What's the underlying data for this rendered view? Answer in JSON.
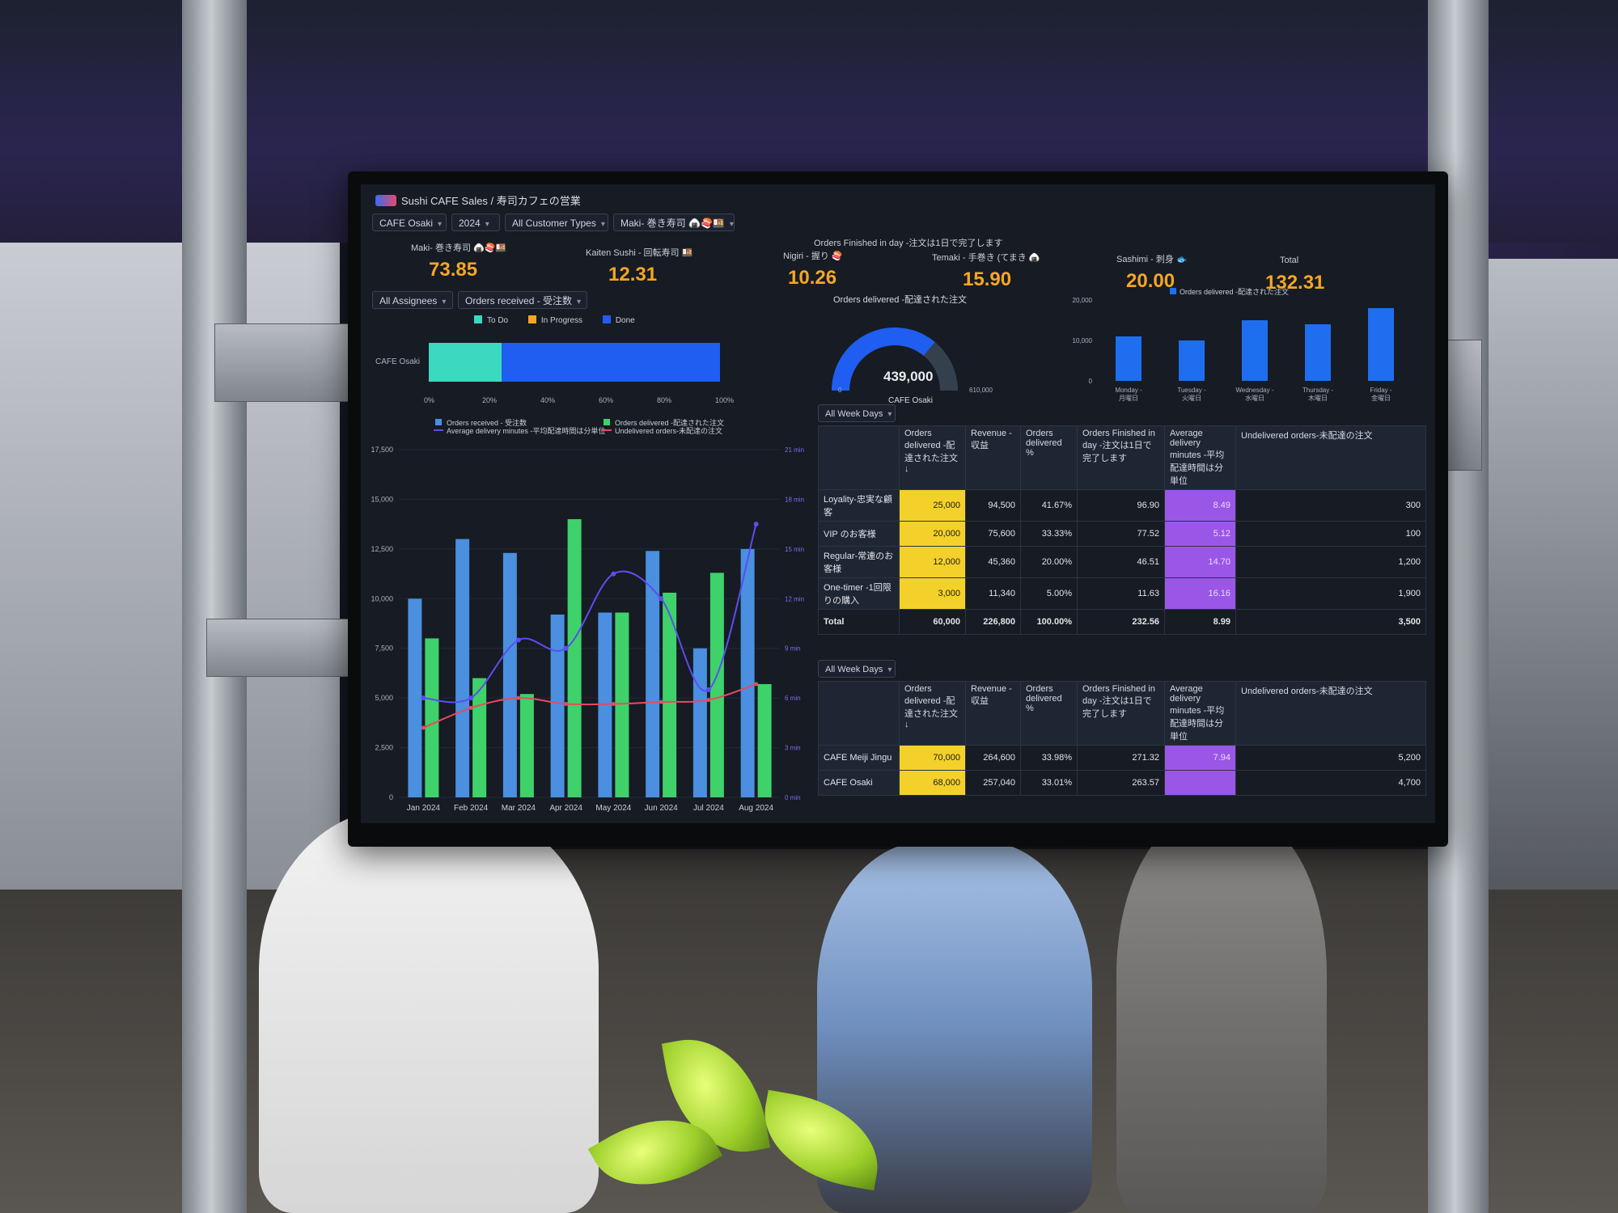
{
  "header": {
    "title": "Sushi CAFE Sales / 寿司カフェの営業"
  },
  "filters": {
    "cafe": "CAFE Osaki",
    "year": "2024",
    "customer_types": "All Customer Types",
    "product": "Maki- 巻き寿司 🍙🍣🍱",
    "assignees": "All Assignees",
    "orders_received": "Orders received - 受注数"
  },
  "kpis": {
    "group_title": "Orders Finished in day -注文は1日で完了します",
    "items": [
      {
        "label": "Maki- 巻き寿司 🍙🍣🍱",
        "value": "73.85"
      },
      {
        "label": "Kaiten Sushi - 回転寿司 🍱",
        "value": "12.31"
      },
      {
        "label": "Nigiri - 握り 🍣",
        "value": "10.26"
      },
      {
        "label": "Temaki - 手巻き (てまき 🍙",
        "value": "15.90"
      },
      {
        "label": "Sashimi - 刺身 🐟",
        "value": "20.00"
      },
      {
        "label": "Total",
        "value": "132.31"
      }
    ]
  },
  "status_bar": {
    "legend": [
      "To Do",
      "In Progress",
      "Done"
    ],
    "colors": [
      "#3ad9c0",
      "#f5a623",
      "#1f5ef0"
    ],
    "row_label": "CAFE Osaki",
    "todo_fraction": 0.25,
    "in_progress_fraction": 0.0,
    "done_fraction": 0.75,
    "ticks": [
      "0%",
      "20%",
      "40%",
      "60%",
      "80%",
      "100%"
    ]
  },
  "gauge": {
    "title": "Orders delivered -配達された注文",
    "value": "439,000",
    "value_num": 439000,
    "min": "0",
    "max": "610,000",
    "max_num": 610000,
    "caption": "CAFE Osaki"
  },
  "table1": {
    "filter": "All Week Days",
    "headers": [
      "",
      "Orders delivered -配達された注文 ↓",
      "Revenue - 収益",
      "Orders delivered %",
      "Orders Finished in day -注文は1日で完了します",
      "Average delivery minutes -平均配達時間は分単位",
      "Undelivered orders-未配達の注文"
    ],
    "rows": [
      [
        "Loyality-忠実な顧客",
        "25,000",
        "94,500",
        "41.67%",
        "96.90",
        "8.49",
        "300"
      ],
      [
        "VIP のお客様",
        "20,000",
        "75,600",
        "33.33%",
        "77.52",
        "5.12",
        "100"
      ],
      [
        "Regular-常連のお客様",
        "12,000",
        "45,360",
        "20.00%",
        "46.51",
        "14.70",
        "1,200"
      ],
      [
        "One-timer -1回限りの購入",
        "3,000",
        "11,340",
        "5.00%",
        "11.63",
        "16.16",
        "1,900"
      ]
    ],
    "total": [
      "Total",
      "60,000",
      "226,800",
      "100.00%",
      "232.56",
      "8.99",
      "3,500"
    ]
  },
  "table2": {
    "filter": "All Week Days",
    "headers": [
      "",
      "Orders delivered -配達された注文 ↓",
      "Revenue - 収益",
      "Orders delivered %",
      "Orders Finished in day -注文は1日で完了します",
      "Average delivery minutes -平均配達時間は分単位",
      "Undelivered orders-未配達の注文"
    ],
    "rows": [
      [
        "CAFE Meiji Jingu",
        "70,000",
        "264,600",
        "33.98%",
        "271.32",
        "7.94",
        "5,200"
      ],
      [
        "CAFE Osaki",
        "68,000",
        "257,040",
        "33.01%",
        "263.57",
        "",
        "4,700"
      ]
    ]
  },
  "chart_data": [
    {
      "type": "bar",
      "title": "",
      "legend": [
        "Orders delivered -配達された注文"
      ],
      "categories": [
        "Monday - 月曜日",
        "Tuesday - 火曜日",
        "Wednesday - 水曜日",
        "Thursday - 木曜日",
        "Friday - 金曜日"
      ],
      "series": [
        {
          "name": "Orders delivered -配達された注文",
          "values": [
            11000,
            10000,
            15000,
            14000,
            18000
          ],
          "color": "#1f6ef0"
        }
      ],
      "ylim": [
        0,
        20000
      ],
      "yticks": [
        "0",
        "10,000",
        "20,000"
      ]
    },
    {
      "type": "bar",
      "title": "",
      "categories": [
        "Jan 2024",
        "Feb 2024",
        "Mar 2024",
        "Apr 2024",
        "May 2024",
        "Jun 2024",
        "Jul 2024",
        "Aug 2024"
      ],
      "series": [
        {
          "name": "Orders received - 受注数",
          "type": "bar",
          "values": [
            10000,
            13000,
            12300,
            9200,
            9300,
            12400,
            7500,
            12500
          ],
          "color": "#4a8fe0"
        },
        {
          "name": "Orders delivered -配達された注文",
          "type": "bar",
          "values": [
            8000,
            6000,
            5200,
            14000,
            9300,
            10300,
            11300,
            5700
          ],
          "color": "#3fd16a"
        },
        {
          "name": "Average delivery minutes -平均配達時間は分単位",
          "type": "line",
          "axis": "right",
          "values": [
            6,
            6,
            9.5,
            9,
            13.5,
            12,
            6.5,
            16.5
          ],
          "color": "#5b4ef0"
        },
        {
          "name": "Undelivered orders-未配達の注文",
          "type": "line",
          "values": [
            3500,
            4500,
            5000,
            4700,
            4700,
            4800,
            4900,
            5700
          ],
          "color": "#e84a5f"
        }
      ],
      "ylim": [
        0,
        17500
      ],
      "yticks": [
        "0",
        "2,500",
        "5,000",
        "7,500",
        "10,000",
        "12,500",
        "15,000",
        "17,500"
      ],
      "y2lim": [
        0,
        21
      ],
      "y2ticks": [
        "0 min",
        "3 min",
        "6 min",
        "9 min",
        "12 min",
        "15 min",
        "18 min",
        "21 min"
      ]
    }
  ]
}
